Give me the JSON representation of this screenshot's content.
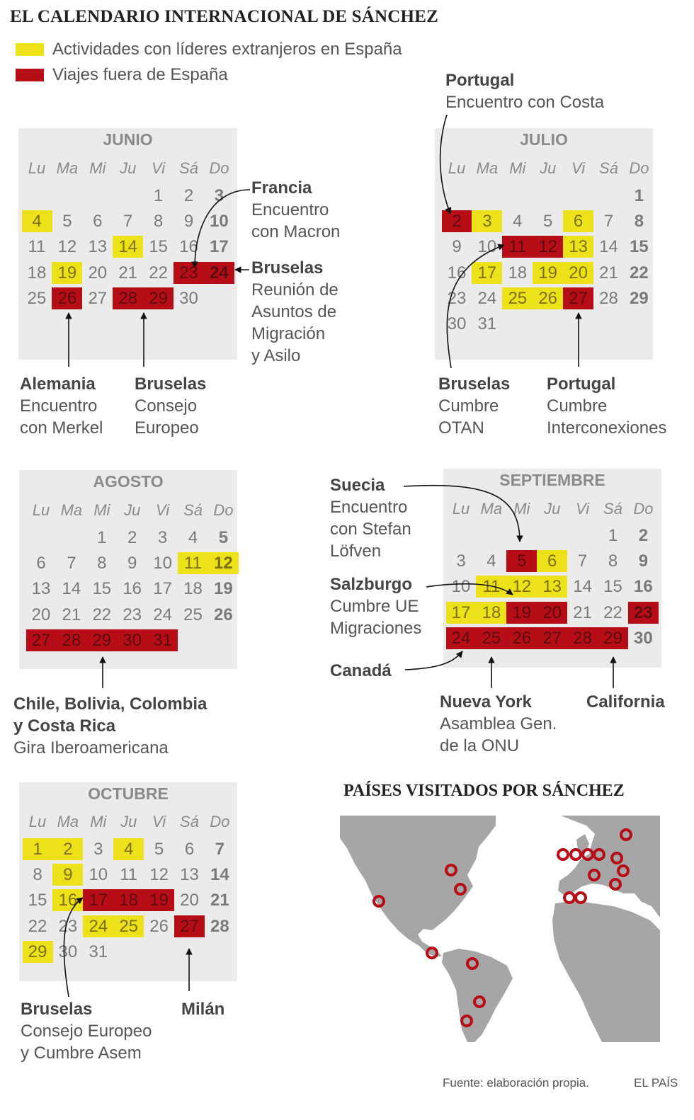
{
  "title": "EL CALENDARIO INTERNACIONAL DE SÁNCHEZ",
  "legend": [
    {
      "label": "Actividades con líderes extranjeros en España",
      "color": "#ede21a"
    },
    {
      "label": "Viajes fuera de España",
      "color": "#b60d17"
    }
  ],
  "weekdays": [
    "Lu",
    "Ma",
    "Mi",
    "Ju",
    "Vi",
    "Sá",
    "Do"
  ],
  "calendars": [
    {
      "month": "JUNIO",
      "first_weekday": 4,
      "days_in_month": 30,
      "yellow": [
        4,
        14,
        19
      ],
      "red": [
        23,
        24,
        26,
        28,
        29
      ]
    },
    {
      "month": "JULIO",
      "first_weekday": 6,
      "days_in_month": 31,
      "yellow": [
        3,
        6,
        13,
        17,
        19,
        20,
        25,
        26
      ],
      "red": [
        2,
        11,
        12,
        27
      ]
    },
    {
      "month": "AGOSTO",
      "first_weekday": 2,
      "days_in_month": 31,
      "yellow": [
        11,
        12
      ],
      "red": [
        27,
        28,
        29,
        30,
        31
      ]
    },
    {
      "month": "SEPTIEMBRE",
      "first_weekday": 5,
      "days_in_month": 30,
      "yellow": [
        6,
        11,
        12,
        13,
        17,
        18
      ],
      "red": [
        5,
        19,
        20,
        23,
        24,
        25,
        26,
        27,
        28,
        29
      ]
    },
    {
      "month": "OCTUBRE",
      "first_weekday": 0,
      "days_in_month": 31,
      "yellow": [
        1,
        2,
        4,
        9,
        16,
        24,
        25,
        29
      ],
      "red": [
        17,
        18,
        19,
        27
      ]
    }
  ],
  "annotations": {
    "francia": {
      "head": "Francia",
      "lines": [
        "Encuentro",
        "con Macron"
      ]
    },
    "bruselas_jun": {
      "head": "Bruselas",
      "lines": [
        "Reunión de",
        "Asuntos de",
        "Migración",
        "y Asilo"
      ]
    },
    "alemania": {
      "head": "Alemania",
      "lines": [
        "Encuentro",
        "con Merkel"
      ]
    },
    "bruselas_consejo": {
      "head": "Bruselas",
      "lines": [
        "Consejo",
        "Europeo"
      ]
    },
    "portugal_costa": {
      "head": "Portugal",
      "lines": [
        "Encuentro con Costa"
      ]
    },
    "bruselas_otan": {
      "head": "Bruselas",
      "lines": [
        "Cumbre",
        "OTAN"
      ]
    },
    "portugal_inter": {
      "head": "Portugal",
      "lines": [
        "Cumbre",
        "Interconexiones"
      ]
    },
    "gira": {
      "head_lines": [
        "Chile, Bolivia, Colombia",
        "y Costa Rica"
      ],
      "lines": [
        "Gira Iberoamericana"
      ]
    },
    "suecia": {
      "head": "Suecia",
      "lines": [
        "Encuentro",
        "con Stefan",
        "Löfven"
      ]
    },
    "salzburgo": {
      "head": "Salzburgo",
      "lines": [
        "Cumbre UE",
        "Migraciones"
      ]
    },
    "canada": {
      "head": "Canadá",
      "lines": []
    },
    "nueva_york": {
      "head": "Nueva York",
      "lines": [
        "Asamblea Gen.",
        "de la ONU"
      ]
    },
    "california": {
      "head": "California",
      "lines": []
    },
    "bruselas_asem": {
      "head": "Bruselas",
      "lines": [
        "Consejo Europeo",
        "y Cumbre Asem"
      ]
    },
    "milan": {
      "head": "Milán",
      "lines": []
    }
  },
  "map": {
    "title": "PAÍSES VISITADOS POR SÁNCHEZ",
    "land_color": "#a6a6a6",
    "marker_color": "#b60d17"
  },
  "footer": {
    "source": "Fuente: elaboración propia.",
    "brand": "EL PAÍS"
  }
}
